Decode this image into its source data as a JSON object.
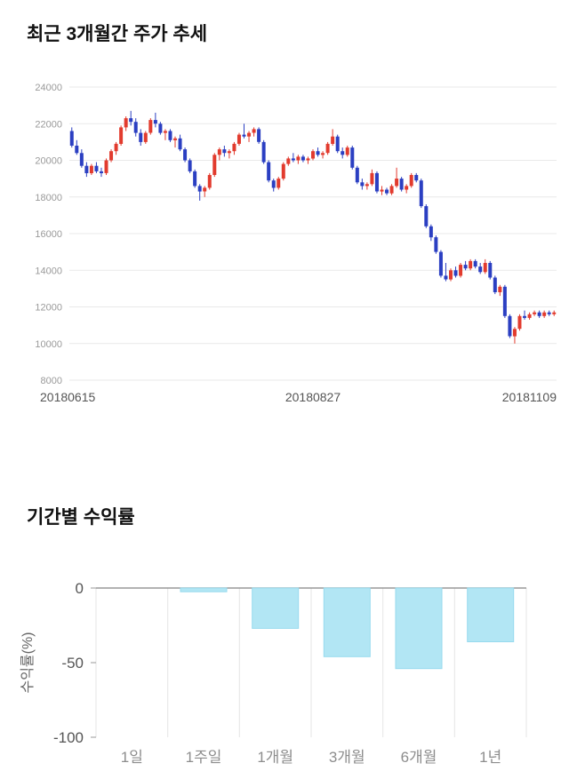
{
  "section1": {
    "title": "최근 3개월간 주가 추세"
  },
  "section2": {
    "title": "기간별 수익률"
  },
  "chart_data": [
    {
      "type": "candlestick",
      "title": "최근 3개월간 주가 추세",
      "ylim": [
        8000,
        24000
      ],
      "yticks": [
        8000,
        10000,
        12000,
        14000,
        16000,
        18000,
        20000,
        22000,
        24000
      ],
      "x_axis_labels": [
        "20180615",
        "20180827",
        "20181109"
      ],
      "colors": {
        "up": "#e23b2e",
        "down": "#2b3fc2",
        "grid": "#e9e9e9"
      },
      "candles": [
        [
          21600,
          21800,
          20700,
          20800
        ],
        [
          20800,
          21100,
          20300,
          20400
        ],
        [
          20400,
          20600,
          19600,
          19700
        ],
        [
          19700,
          19900,
          19100,
          19300
        ],
        [
          19300,
          19800,
          19200,
          19700
        ],
        [
          19700,
          19900,
          19300,
          19400
        ],
        [
          19400,
          19600,
          19100,
          19300
        ],
        [
          19300,
          20100,
          19200,
          20000
        ],
        [
          20000,
          20600,
          19900,
          20500
        ],
        [
          20500,
          21000,
          20300,
          20900
        ],
        [
          20900,
          21900,
          20800,
          21800
        ],
        [
          21800,
          22400,
          21600,
          22300
        ],
        [
          22300,
          22700,
          21900,
          22100
        ],
        [
          22100,
          22300,
          21300,
          21500
        ],
        [
          21500,
          21700,
          20800,
          21000
        ],
        [
          21000,
          21600,
          20900,
          21500
        ],
        [
          21500,
          22300,
          21400,
          22200
        ],
        [
          22200,
          22600,
          21800,
          22000
        ],
        [
          22000,
          22100,
          21400,
          21500
        ],
        [
          21500,
          21700,
          21100,
          21600
        ],
        [
          21600,
          21700,
          21000,
          21100
        ],
        [
          21100,
          21300,
          20700,
          21200
        ],
        [
          21200,
          21400,
          20500,
          20600
        ],
        [
          20600,
          20700,
          19900,
          20000
        ],
        [
          20000,
          20100,
          19300,
          19400
        ],
        [
          19400,
          19500,
          18500,
          18600
        ],
        [
          18600,
          18700,
          17800,
          18300
        ],
        [
          18300,
          18600,
          18000,
          18500
        ],
        [
          18500,
          19300,
          18400,
          19200
        ],
        [
          19200,
          20400,
          19100,
          20300
        ],
        [
          20300,
          20700,
          20000,
          20600
        ],
        [
          20600,
          20800,
          20200,
          20400
        ],
        [
          20400,
          20600,
          20100,
          20500
        ],
        [
          20500,
          21000,
          20300,
          20900
        ],
        [
          20900,
          21500,
          20800,
          21400
        ],
        [
          21400,
          22000,
          21200,
          21300
        ],
        [
          21300,
          21600,
          21000,
          21500
        ],
        [
          21500,
          21800,
          21300,
          21700
        ],
        [
          21700,
          21800,
          20900,
          21000
        ],
        [
          21000,
          21100,
          19800,
          19900
        ],
        [
          19900,
          20000,
          18800,
          18900
        ],
        [
          18900,
          19000,
          18300,
          18500
        ],
        [
          18500,
          19100,
          18400,
          19000
        ],
        [
          19000,
          19900,
          18900,
          19800
        ],
        [
          19800,
          20200,
          19700,
          20100
        ],
        [
          20100,
          20400,
          19900,
          20000
        ],
        [
          20000,
          20300,
          19800,
          20200
        ],
        [
          20200,
          20300,
          19900,
          20000
        ],
        [
          20000,
          20200,
          19800,
          20100
        ],
        [
          20100,
          20600,
          20000,
          20500
        ],
        [
          20500,
          20700,
          20200,
          20300
        ],
        [
          20300,
          20500,
          20100,
          20400
        ],
        [
          20400,
          21000,
          20300,
          20900
        ],
        [
          20900,
          21700,
          20800,
          21300
        ],
        [
          21300,
          21400,
          20400,
          20500
        ],
        [
          20500,
          20700,
          20100,
          20300
        ],
        [
          20300,
          20800,
          20200,
          20700
        ],
        [
          20700,
          20800,
          19500,
          19600
        ],
        [
          19600,
          19700,
          18700,
          18800
        ],
        [
          18800,
          19000,
          18400,
          18600
        ],
        [
          18600,
          18800,
          18400,
          18700
        ],
        [
          18700,
          19500,
          18600,
          19300
        ],
        [
          19300,
          19400,
          18200,
          18300
        ],
        [
          18300,
          18600,
          18100,
          18400
        ],
        [
          18400,
          18500,
          18100,
          18200
        ],
        [
          18200,
          18700,
          18100,
          18600
        ],
        [
          18600,
          19600,
          18500,
          19000
        ],
        [
          19000,
          19100,
          18300,
          18400
        ],
        [
          18400,
          18700,
          18200,
          18600
        ],
        [
          18600,
          19300,
          18500,
          19200
        ],
        [
          19200,
          19300,
          18800,
          18900
        ],
        [
          18900,
          19000,
          17400,
          17500
        ],
        [
          17500,
          17600,
          16300,
          16400
        ],
        [
          16400,
          16500,
          15600,
          15800
        ],
        [
          15800,
          15900,
          14900,
          15000
        ],
        [
          15000,
          15100,
          13600,
          13700
        ],
        [
          13700,
          14400,
          13400,
          13500
        ],
        [
          13500,
          14100,
          13400,
          14000
        ],
        [
          14000,
          14200,
          13600,
          13700
        ],
        [
          13700,
          14400,
          13600,
          14300
        ],
        [
          14300,
          14500,
          14000,
          14100
        ],
        [
          14100,
          14600,
          14000,
          14500
        ],
        [
          14500,
          14600,
          14100,
          14200
        ],
        [
          14200,
          14400,
          13800,
          13900
        ],
        [
          13900,
          14600,
          13800,
          14400
        ],
        [
          14400,
          14500,
          13500,
          13600
        ],
        [
          13600,
          13700,
          12700,
          12800
        ],
        [
          12800,
          13200,
          12600,
          13100
        ],
        [
          13100,
          13200,
          11400,
          11500
        ],
        [
          11500,
          11600,
          10300,
          10400
        ],
        [
          10400,
          10900,
          10000,
          10800
        ],
        [
          10800,
          11600,
          10700,
          11500
        ],
        [
          11500,
          11800,
          11300,
          11400
        ],
        [
          11400,
          11700,
          11300,
          11600
        ],
        [
          11600,
          11800,
          11500,
          11700
        ],
        [
          11700,
          11800,
          11400,
          11500
        ],
        [
          11500,
          11800,
          11400,
          11700
        ],
        [
          11700,
          11800,
          11500,
          11600
        ],
        [
          11600,
          11800,
          11500,
          11700
        ]
      ]
    },
    {
      "type": "bar",
      "title": "기간별 수익률",
      "categories": [
        "1일",
        "1주일",
        "1개월",
        "3개월",
        "6개월",
        "1년"
      ],
      "values": [
        0,
        -2.5,
        -27,
        -46,
        -54,
        -36
      ],
      "ylabel": "수익률(%)",
      "yticks": [
        0,
        -50,
        -100
      ],
      "ylim": [
        -100,
        0
      ],
      "bar_color": "#b2e6f4",
      "bar_stroke": "#97daee",
      "grid_color": "#e4e4e4",
      "axis_color": "#999999"
    }
  ]
}
